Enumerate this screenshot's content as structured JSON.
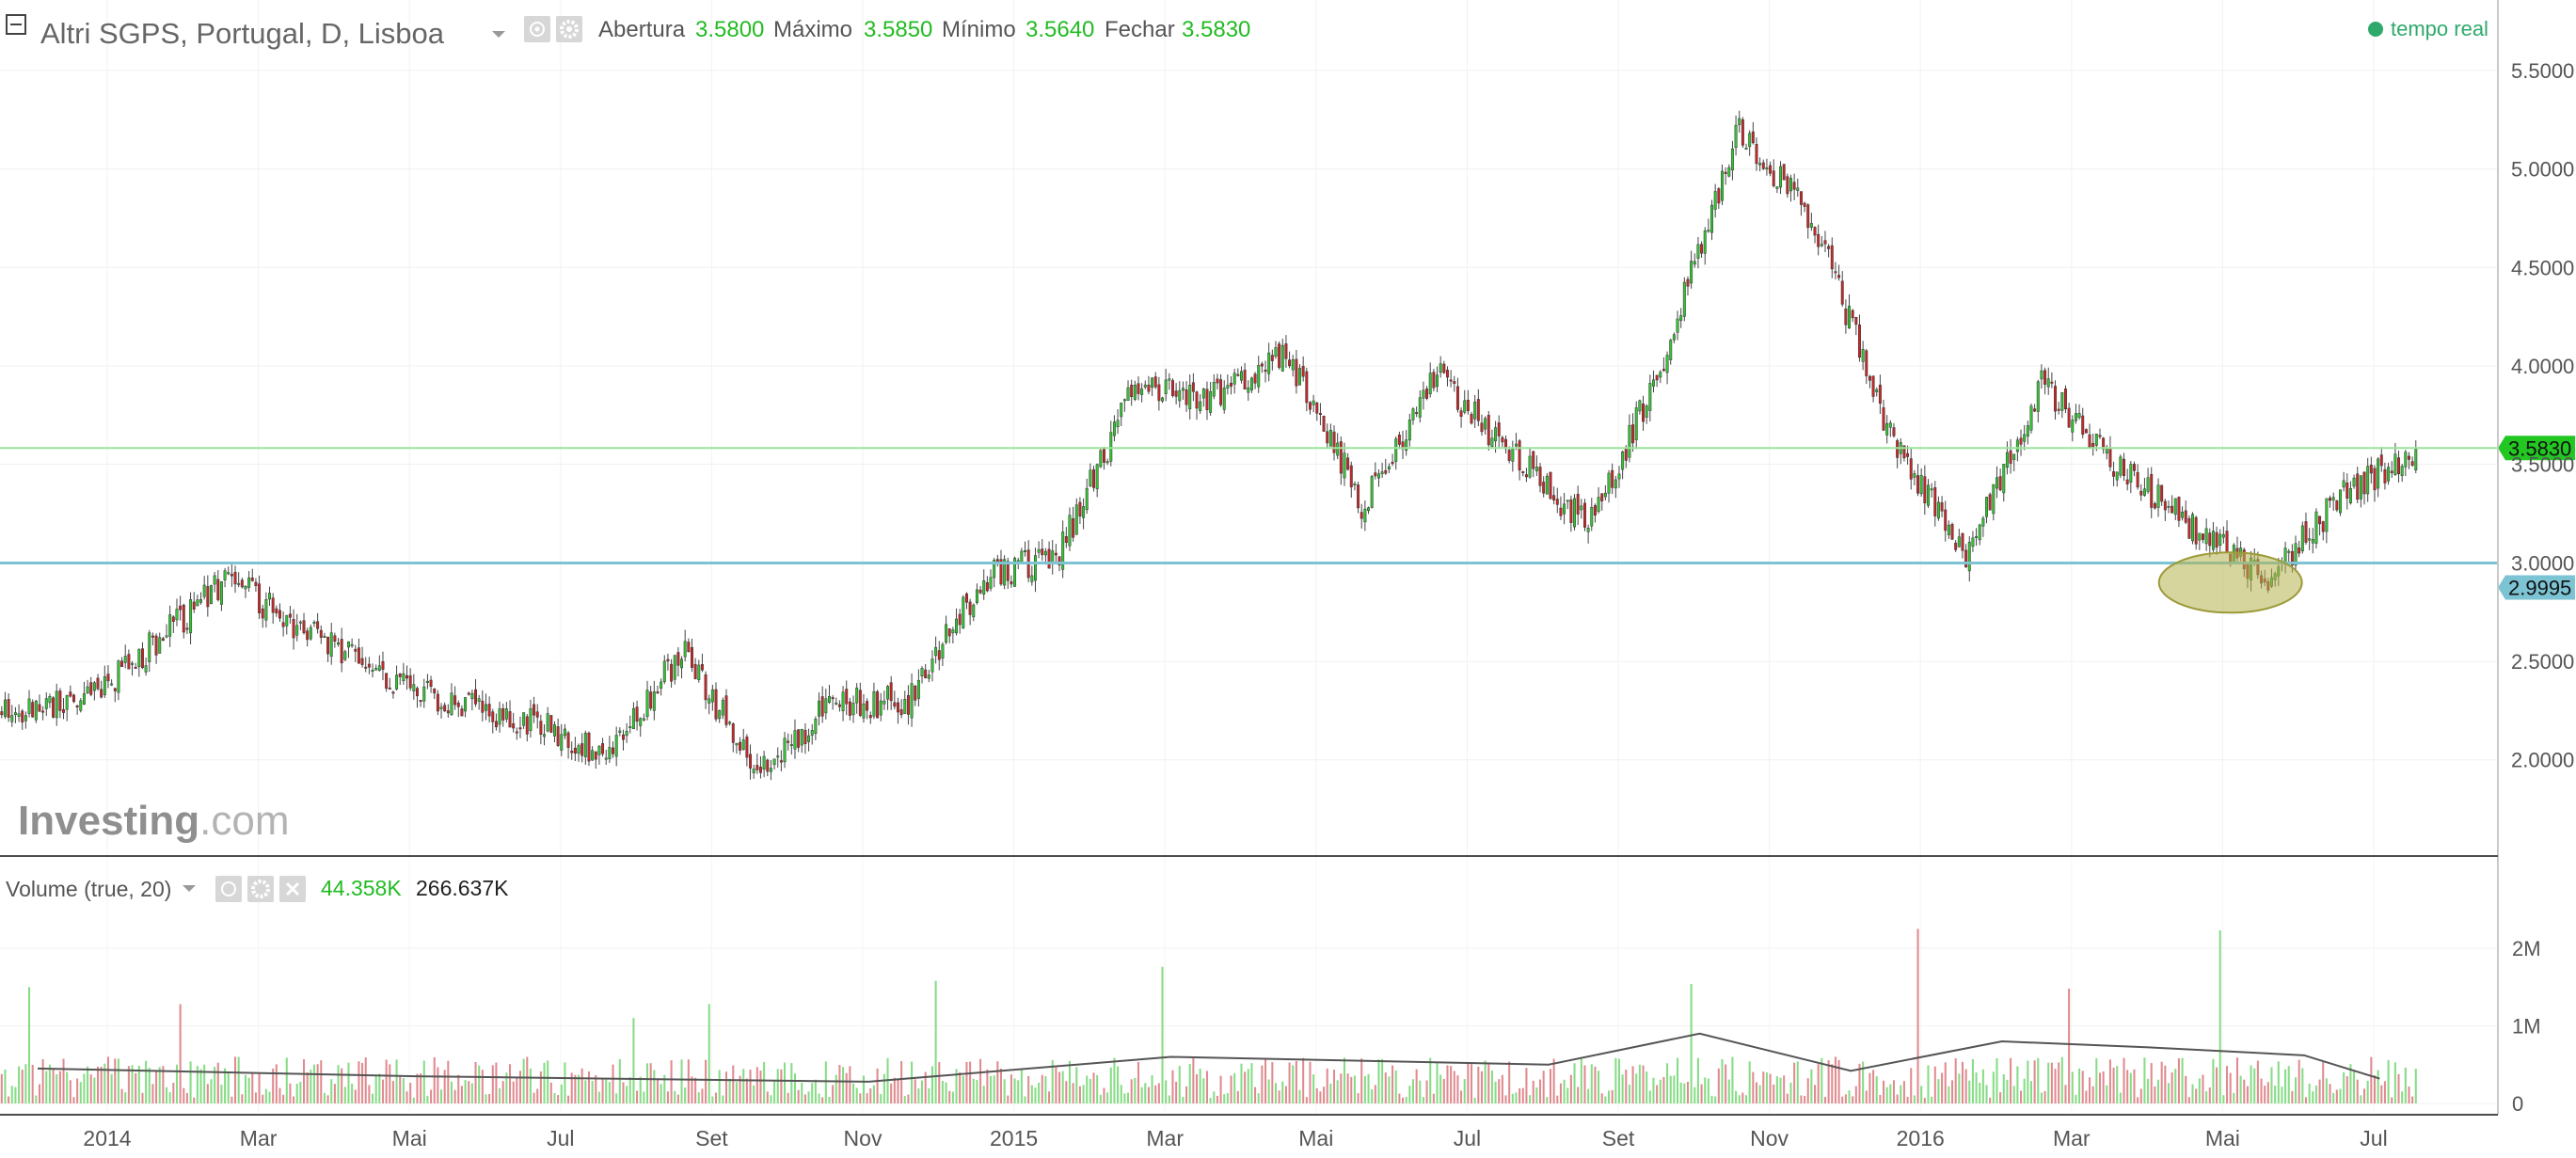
{
  "header": {
    "title": "Altri SGPS, Portugal, D, Lisboa",
    "ohlc": [
      {
        "label": "Abertura",
        "value": "3.5800"
      },
      {
        "label": "Máximo",
        "value": "3.5850"
      },
      {
        "label": "Mínimo",
        "value": "3.5640"
      },
      {
        "label": "Fechar",
        "value": "3.5830"
      }
    ],
    "realtime_label": "tempo real"
  },
  "volume_header": {
    "title": "Volume (true, 20)",
    "value_1": "44.358K",
    "value_2": "266.637K"
  },
  "watermark": {
    "brand": "Investing",
    "suffix": ".com"
  },
  "colors": {
    "up": "#32c532",
    "down": "#c62828",
    "volume_up": "#86dc86",
    "volume_down": "#e08a8f",
    "support_line": "#7cc3d3",
    "current_line": "#9be49b",
    "ellipse": "#b5b24e"
  },
  "chart_data": [
    {
      "type": "candlestick",
      "title": "Altri SGPS, Portugal, D, Lisboa",
      "xlabel": "",
      "ylabel": "",
      "x_ticks": [
        "2014",
        "Mar",
        "Mai",
        "Jul",
        "Set",
        "Nov",
        "2015",
        "Mar",
        "Mai",
        "Jul",
        "Set",
        "Nov",
        "2016",
        "Mar",
        "Mai",
        "Jul"
      ],
      "y_ticks": [
        "2.0000",
        "2.5000",
        "3.0000",
        "3.5000",
        "4.0000",
        "4.5000",
        "5.0000",
        "5.5000"
      ],
      "ylim": [
        1.65,
        5.6
      ],
      "price_path": [
        {
          "month": "2014-01",
          "close": 2.27
        },
        {
          "month": "2014-02",
          "close": 2.58
        },
        {
          "month": "2014-03",
          "close": 2.92
        },
        {
          "month": "2014-04",
          "close": 2.65
        },
        {
          "month": "2014-05",
          "close": 2.45
        },
        {
          "month": "2014-06",
          "close": 2.28
        },
        {
          "month": "2014-07",
          "close": 2.2
        },
        {
          "month": "2014-08",
          "close": 2.02
        },
        {
          "month": "2014-09",
          "close": 2.55
        },
        {
          "month": "2014-10",
          "close": 1.95
        },
        {
          "month": "2014-11",
          "close": 2.28
        },
        {
          "month": "2014-12",
          "close": 2.3
        },
        {
          "month": "2015-01",
          "close": 2.92
        },
        {
          "month": "2015-02",
          "close": 3.05
        },
        {
          "month": "2015-03",
          "close": 3.9
        },
        {
          "month": "2015-04",
          "close": 3.85
        },
        {
          "month": "2015-05",
          "close": 4.08
        },
        {
          "month": "2015-06",
          "close": 3.3
        },
        {
          "month": "2015-07",
          "close": 3.95
        },
        {
          "month": "2015-08",
          "close": 3.55
        },
        {
          "month": "2015-09",
          "close": 3.18
        },
        {
          "month": "2015-10",
          "close": 4.02
        },
        {
          "month": "2015-11",
          "close": 5.22
        },
        {
          "month": "2015-12",
          "close": 4.72
        },
        {
          "month": "2016-01",
          "close": 3.65
        },
        {
          "month": "2016-02",
          "close": 3.05
        },
        {
          "month": "2016-03",
          "close": 3.9
        },
        {
          "month": "2016-04",
          "close": 3.5
        },
        {
          "month": "2016-05",
          "close": 3.18
        },
        {
          "month": "2016-06",
          "close": 2.92
        },
        {
          "month": "2016-07",
          "close": 3.35
        },
        {
          "month": "2016-08",
          "close": 3.58
        }
      ],
      "horizontal_lines": [
        {
          "value": 3.583,
          "label": "3.5830"
        },
        {
          "value": 2.9995,
          "label": "2.9995"
        }
      ],
      "annotations": [
        {
          "type": "ellipse",
          "month_center": "2016-06",
          "price_center": 2.9
        }
      ]
    },
    {
      "type": "bar",
      "title": "Volume (true, 20)",
      "y_ticks": [
        "0",
        "1M",
        "2M"
      ],
      "ylim": [
        0,
        2400000
      ],
      "typical_daily_volume": 280000,
      "spikes": [
        {
          "month": "2014-01",
          "value": 1500000
        },
        {
          "month": "2014-03",
          "value": 1280000
        },
        {
          "month": "2014-09",
          "value": 1100000
        },
        {
          "month": "2014-10",
          "value": 1280000
        },
        {
          "month": "2015-01",
          "value": 1580000
        },
        {
          "month": "2015-04",
          "value": 1760000
        },
        {
          "month": "2015-11",
          "value": 1540000
        },
        {
          "month": "2016-02",
          "value": 2250000
        },
        {
          "month": "2016-04",
          "value": 1480000
        },
        {
          "month": "2016-06",
          "value": 2230000
        }
      ],
      "moving_average_months": [
        {
          "month": "2014-01",
          "value": 450000
        },
        {
          "month": "2014-06",
          "value": 350000
        },
        {
          "month": "2014-12",
          "value": 280000
        },
        {
          "month": "2015-04",
          "value": 600000
        },
        {
          "month": "2015-09",
          "value": 500000
        },
        {
          "month": "2015-11",
          "value": 900000
        },
        {
          "month": "2016-01",
          "value": 420000
        },
        {
          "month": "2016-03",
          "value": 800000
        },
        {
          "month": "2016-05",
          "value": 720000
        },
        {
          "month": "2016-07",
          "value": 620000
        },
        {
          "month": "2016-08",
          "value": 320000
        }
      ]
    }
  ]
}
